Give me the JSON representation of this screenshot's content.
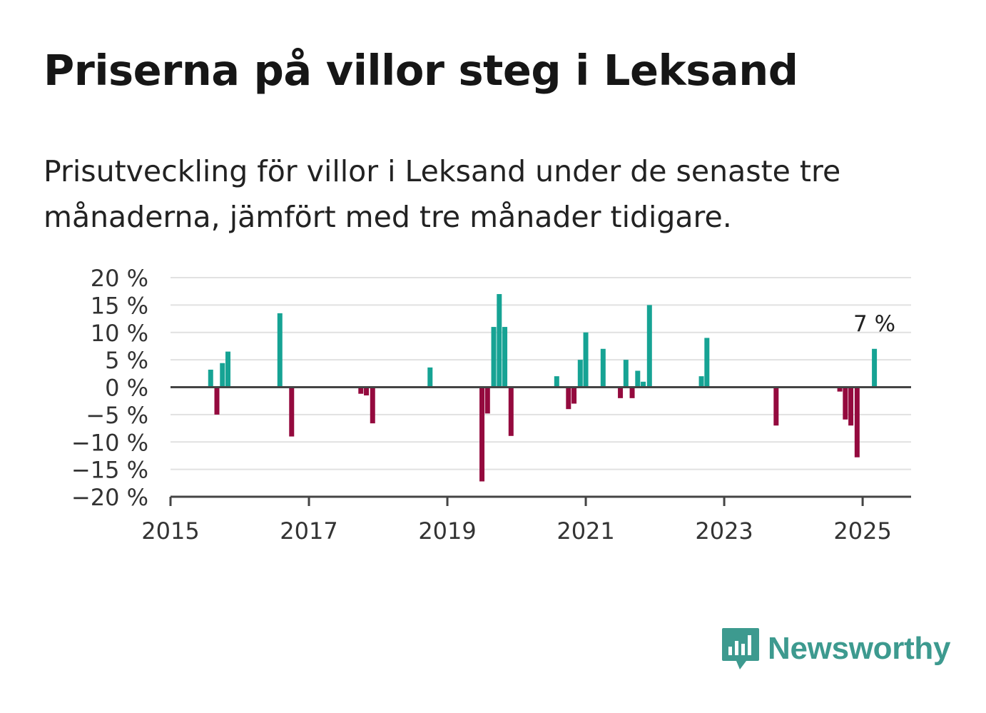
{
  "header": {
    "title": "Priserna på villor steg i Leksand",
    "subtitle": "Prisutveckling för villor i Leksand under de senaste tre månaderna, jämfört med tre månader tidigare."
  },
  "brand": {
    "name": "Newsworthy",
    "color": "#3d9a8f",
    "icon": "bar-chart-speech-bubble-icon"
  },
  "chart_data": {
    "type": "bar",
    "title": "",
    "xlabel": "",
    "ylabel": "",
    "xlim": [
      2015.0,
      2025.7
    ],
    "ylim": [
      -20,
      20
    ],
    "x_ticks": [
      2015,
      2017,
      2019,
      2021,
      2023,
      2025
    ],
    "x_tick_labels": [
      "2015",
      "2017",
      "2019",
      "2021",
      "2023",
      "2025"
    ],
    "y_ticks": [
      20,
      15,
      10,
      5,
      0,
      -5,
      -10,
      -15,
      -20
    ],
    "y_tick_labels": [
      "20 %",
      "15 %",
      "10 %",
      "5 %",
      "0 %",
      "−5 %",
      "−10 %",
      "−15 %",
      "−20 %"
    ],
    "grid": true,
    "colors": {
      "positive": "#16a394",
      "negative": "#940a3e",
      "grid": "#e1e1e1",
      "axis": "#444444"
    },
    "annotation": {
      "text": "7 %",
      "x": 2025.17
    },
    "series": [
      {
        "x": [
          2015.58,
          2015.67,
          2015.75,
          2015.83,
          2016.58,
          2016.75,
          2017.75,
          2017.83,
          2017.92,
          2018.75,
          2019.5,
          2019.58,
          2019.67,
          2019.75,
          2019.83,
          2019.92,
          2020.58,
          2020.75,
          2020.83,
          2020.92,
          2021.0,
          2021.25,
          2021.5,
          2021.58,
          2021.67,
          2021.75,
          2021.83,
          2021.92,
          2022.67,
          2022.75,
          2023.75,
          2024.67,
          2024.75,
          2024.83,
          2024.92,
          2025.17
        ],
        "values": [
          3.2,
          -5.0,
          4.4,
          6.5,
          13.5,
          -9.0,
          -1.2,
          -1.5,
          -6.6,
          3.6,
          -17.2,
          -4.8,
          11.0,
          17.0,
          11.0,
          -8.9,
          2.0,
          -4.0,
          -3.0,
          5.0,
          10.0,
          7.0,
          -2.0,
          5.0,
          -2.0,
          3.0,
          1.0,
          15.0,
          2.0,
          9.0,
          -7.0,
          -0.8,
          -5.9,
          -7.0,
          -12.8,
          7.0
        ]
      }
    ]
  }
}
